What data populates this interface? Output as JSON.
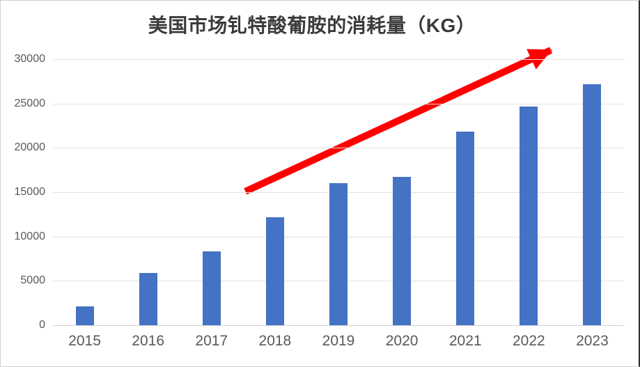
{
  "chart_data": {
    "type": "bar",
    "title": "美国市场钆特酸葡胺的消耗量（KG）",
    "categories": [
      "2015",
      "2016",
      "2017",
      "2018",
      "2019",
      "2020",
      "2021",
      "2022",
      "2023"
    ],
    "values": [
      2150,
      5900,
      8300,
      12200,
      16050,
      16750,
      21850,
      24650,
      27200
    ],
    "xlabel": "",
    "ylabel": "",
    "ylim": [
      0,
      30000
    ],
    "ytick_step": 5000,
    "ytick_labels": [
      "0",
      "5000",
      "10000",
      "15000",
      "20000",
      "25000",
      "30000"
    ],
    "grid": true,
    "legend": "none",
    "colors": {
      "bar": "#4472C4",
      "gridline": "#E2E2E2",
      "axis_labels": "#595959",
      "title": "#3B3B3B",
      "annotation_arrow": "#FE0000"
    },
    "annotation": {
      "type": "arrow",
      "description": "red upward trend arrow across the bars",
      "color": "#FE0000",
      "from_plot_frac": {
        "x": 0.337,
        "y": 0.497
      },
      "to_plot_frac": {
        "x": 0.872,
        "y": -0.034
      },
      "stroke_width_px": 10
    }
  }
}
